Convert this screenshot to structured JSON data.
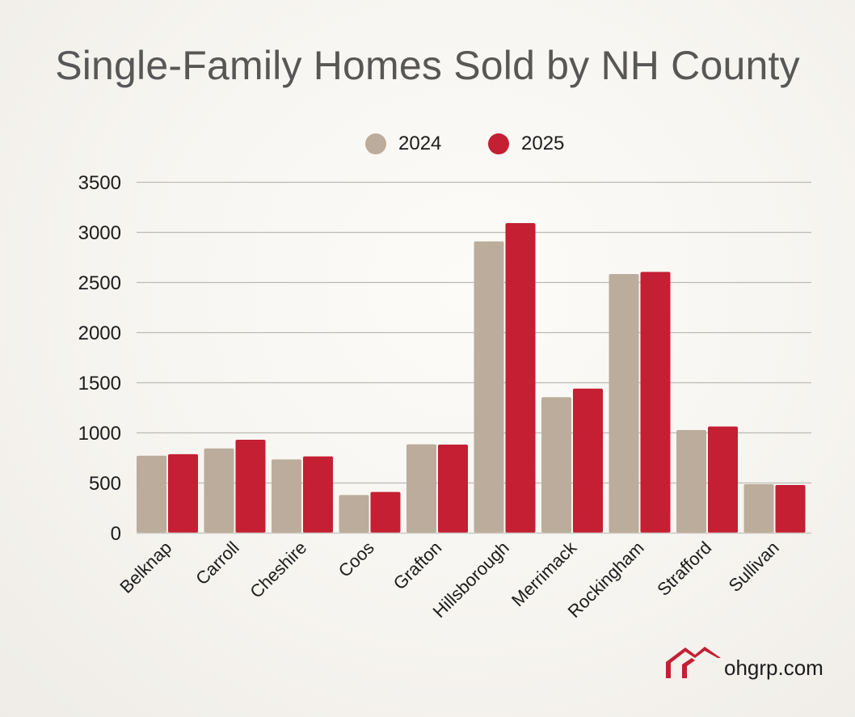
{
  "chart_data": {
    "type": "bar",
    "title": "Single-Family Homes Sold by NH County",
    "xlabel": "",
    "ylabel": "",
    "ylim": [
      0,
      3500
    ],
    "yticks": [
      0,
      500,
      1000,
      1500,
      2000,
      2500,
      3000,
      3500
    ],
    "grid": true,
    "legend_position": "top-center",
    "categories": [
      "Belknap",
      "Carroll",
      "Cheshire",
      "Coos",
      "Grafton",
      "Hillsborough",
      "Merrimack",
      "Rockingham",
      "Strafford",
      "Sullivan"
    ],
    "series": [
      {
        "name": "2024",
        "color": "#bcac9b",
        "values": [
          768,
          841,
          731,
          376,
          882,
          2906,
          1352,
          2581,
          1024,
          484
        ]
      },
      {
        "name": "2025",
        "color": "#c41f33",
        "values": [
          783,
          927,
          761,
          406,
          879,
          3089,
          1438,
          2602,
          1059,
          476
        ]
      }
    ]
  },
  "legend": [
    {
      "label": "2024",
      "color": "#bcac9b"
    },
    {
      "label": "2025",
      "color": "#c41f33"
    }
  ],
  "branding": {
    "site": "ohgrp.com",
    "logo_icon": "house-roof-icon",
    "logo_color": "#c41f33"
  }
}
